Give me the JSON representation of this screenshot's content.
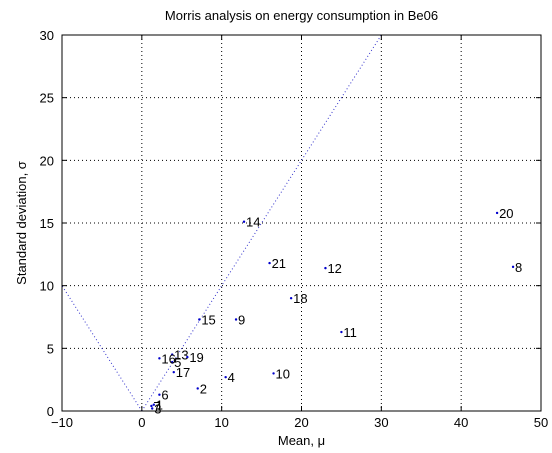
{
  "chart_data": {
    "type": "scatter",
    "title": "Morris analysis on energy consumption in Be06",
    "xlabel": "Mean, μ",
    "ylabel": "Standard deviation, σ",
    "xlim": [
      -10,
      50
    ],
    "ylim": [
      0,
      30
    ],
    "xticks": [
      -10,
      0,
      10,
      20,
      30,
      40,
      50
    ],
    "yticks": [
      0,
      5,
      10,
      15,
      20,
      25,
      30
    ],
    "grid": true,
    "marker_color": "#0000cc",
    "reference_line_color": "#3333cc",
    "reference_lines": [
      {
        "x": [
          0,
          30
        ],
        "y": [
          0,
          30
        ]
      },
      {
        "x": [
          0,
          -10
        ],
        "y": [
          0,
          10
        ]
      }
    ],
    "points": [
      {
        "label": "1",
        "x": 1.5,
        "y": 0.5
      },
      {
        "label": "2",
        "x": 7.0,
        "y": 1.8
      },
      {
        "label": "3",
        "x": 1.3,
        "y": 0.2
      },
      {
        "label": "4",
        "x": 10.5,
        "y": 2.7
      },
      {
        "label": "5",
        "x": 3.8,
        "y": 3.9
      },
      {
        "label": "6",
        "x": 2.2,
        "y": 1.3
      },
      {
        "label": "7",
        "x": 1.2,
        "y": 0.4
      },
      {
        "label": "8",
        "x": 46.5,
        "y": 11.5
      },
      {
        "label": "9",
        "x": 11.8,
        "y": 7.3
      },
      {
        "label": "10",
        "x": 16.5,
        "y": 3.0
      },
      {
        "label": "11",
        "x": 25.0,
        "y": 6.3
      },
      {
        "label": "12",
        "x": 23.0,
        "y": 11.4
      },
      {
        "label": "13",
        "x": 3.8,
        "y": 4.5
      },
      {
        "label": "14",
        "x": 12.8,
        "y": 15.1
      },
      {
        "label": "15",
        "x": 7.2,
        "y": 7.3
      },
      {
        "label": "16",
        "x": 2.2,
        "y": 4.2
      },
      {
        "label": "17",
        "x": 4.0,
        "y": 3.1
      },
      {
        "label": "18",
        "x": 18.7,
        "y": 9.0
      },
      {
        "label": "19",
        "x": 5.7,
        "y": 4.3
      },
      {
        "label": "20",
        "x": 44.5,
        "y": 15.8
      },
      {
        "label": "21",
        "x": 16.0,
        "y": 11.8
      }
    ]
  }
}
